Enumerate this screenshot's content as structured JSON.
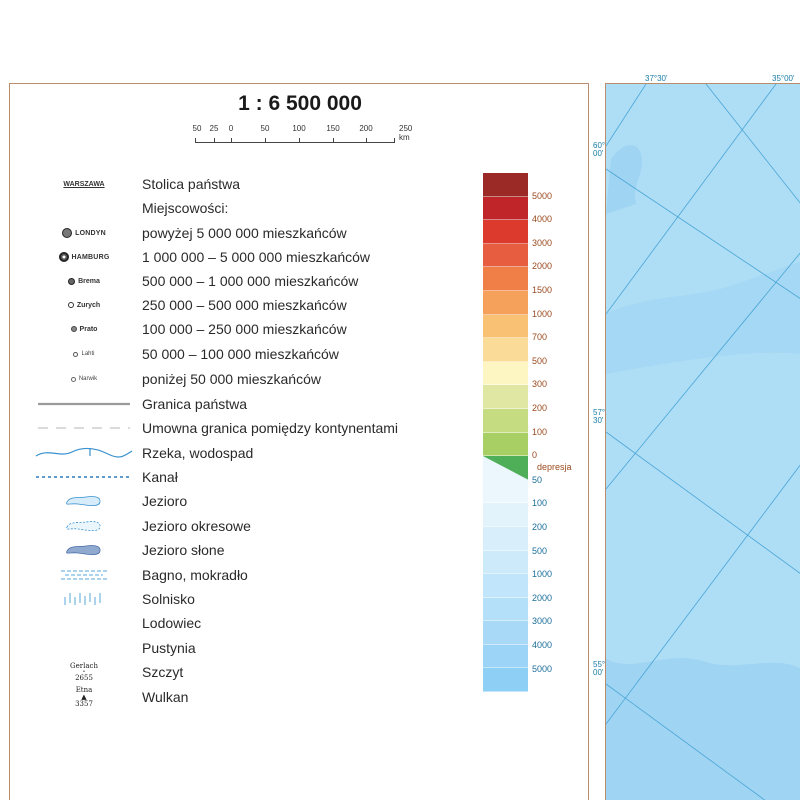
{
  "scale": {
    "title": "1 : 6 500 000",
    "labels": [
      "50",
      "25",
      "0",
      "50",
      "100",
      "150",
      "200",
      "250 km"
    ]
  },
  "legend": {
    "capital": {
      "sample": "WARSZAWA",
      "label": "Stolica państwa"
    },
    "towns_heading": "Miejscowości:",
    "towns": [
      {
        "sample": "LONDYN",
        "label": "powyżej 5 000 000 mieszkańców"
      },
      {
        "sample": "HAMBURG",
        "label": "1 000 000 – 5 000 000 mieszkańców"
      },
      {
        "sample": "Brema",
        "label": "500 000 – 1 000 000 mieszkańców"
      },
      {
        "sample": "Zurych",
        "label": "250 000 – 500 000 mieszkańców"
      },
      {
        "sample": "Prato",
        "label": "100 000 – 250 000 mieszkańców"
      },
      {
        "sample": "Lahti",
        "label": "50 000 – 100 000 mieszkańców"
      },
      {
        "sample": "Narwik",
        "label": "poniżej 50 000 mieszkańców"
      }
    ],
    "features": [
      {
        "icon": "border-line-icon",
        "label": "Granica państwa"
      },
      {
        "icon": "continent-border-icon",
        "label": "Umowna granica pomiędzy kontynentami"
      },
      {
        "icon": "river-icon",
        "label": "Rzeka, wodospad"
      },
      {
        "icon": "canal-icon",
        "label": "Kanał"
      },
      {
        "icon": "lake-icon",
        "label": "Jezioro"
      },
      {
        "icon": "seasonal-lake-icon",
        "label": "Jezioro okresowe"
      },
      {
        "icon": "salt-lake-icon",
        "label": "Jezioro słone"
      },
      {
        "icon": "swamp-icon",
        "label": "Bagno, mokradło"
      },
      {
        "icon": "salt-pan-icon",
        "label": "Solnisko"
      },
      {
        "icon": "glacier-icon",
        "label": "Lodowiec"
      },
      {
        "icon": "desert-icon",
        "label": "Pustynia"
      }
    ],
    "peak": {
      "name": "Gerlach",
      "elevation": "2655",
      "label": "Szczyt"
    },
    "volcano": {
      "name": "Etna",
      "elevation": "3357",
      "label": "Wulkan"
    }
  },
  "elevation_scale": {
    "land_colors": [
      "#9b2a26",
      "#c0252a",
      "#dc3a2d",
      "#e75d3f",
      "#f07f47",
      "#f5a05b",
      "#f8c174",
      "#fadc98",
      "#fdf5c2",
      "#dfe7a3",
      "#c6dc80",
      "#a8cf63"
    ],
    "land_labels": [
      "5000",
      "4000",
      "3000",
      "2000",
      "1500",
      "1000",
      "700",
      "500",
      "300",
      "200",
      "100",
      "0"
    ],
    "depression_label": "depresja",
    "depression_color": "#4fae58",
    "water_colors": [
      "#ebf6fd",
      "#e2f3fc",
      "#d8eefb",
      "#cdeafb",
      "#c1e5fa",
      "#b5e0f9",
      "#a8daf8",
      "#9bd4f7",
      "#8ecff6"
    ],
    "water_labels": [
      "50",
      "100",
      "200",
      "500",
      "1000",
      "2000",
      "3000",
      "4000",
      "5000"
    ],
    "land_label_color": "#9a4a1e",
    "water_label_color": "#1a6e9a"
  },
  "map": {
    "top_coords": [
      "37°30'",
      "35°00'"
    ],
    "left_coords": [
      {
        "deg": "60°",
        "min": "00'"
      },
      {
        "deg": "57°",
        "min": "30'"
      },
      {
        "deg": "55°",
        "min": "00'"
      }
    ]
  }
}
